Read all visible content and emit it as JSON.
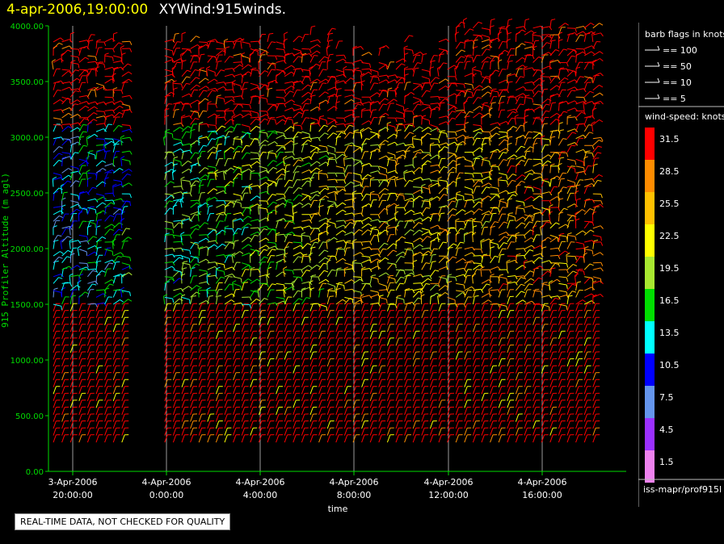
{
  "title": {
    "date": "4-apr-2006,19:00:00",
    "name": "XYWind:915winds."
  },
  "notice": "REAL-TIME DATA, NOT CHECKED FOR QUALITY",
  "source_label": "iss-mapr/prof915l",
  "barb_legend": {
    "title": "barb flags in knots",
    "entries": [
      "== 100",
      "== 50",
      "== 10",
      "== 5"
    ]
  },
  "speed_legend": {
    "title": "wind-speed: knots",
    "levels": [
      {
        "label": "31.5",
        "color": "#ff0000"
      },
      {
        "label": "28.5",
        "color": "#ff8c00"
      },
      {
        "label": "25.5",
        "color": "#ffc000"
      },
      {
        "label": "22.5",
        "color": "#ffff00"
      },
      {
        "label": "19.5",
        "color": "#a8e830"
      },
      {
        "label": "16.5",
        "color": "#00dd00"
      },
      {
        "label": "13.5",
        "color": "#00ffff"
      },
      {
        "label": "10.5",
        "color": "#0000ff"
      },
      {
        "label": "7.5",
        "color": "#6495ed"
      },
      {
        "label": "4.5",
        "color": "#9b30ff"
      },
      {
        "label": "1.5",
        "color": "#ee82ee"
      }
    ]
  },
  "chart_data": {
    "type": "scatter",
    "title": "4-apr-2006,19:00:00 XYWind:915winds.",
    "xlabel": "time",
    "ylabel": "915 Profiler Altitude (m agl)",
    "ylim": [
      0,
      4000
    ],
    "y_ticks": [
      "0.00",
      "500.00",
      "1000.00",
      "1500.00",
      "2000.00",
      "2500.00",
      "3000.00",
      "3500.00",
      "4000.00"
    ],
    "x_ticks": [
      {
        "date": "3-Apr-2006",
        "time": "20:00:00"
      },
      {
        "date": "4-Apr-2006",
        "time": "0:00:00"
      },
      {
        "date": "4-Apr-2006",
        "time": "4:00:00"
      },
      {
        "date": "4-Apr-2006",
        "time": "8:00:00"
      },
      {
        "date": "4-Apr-2006",
        "time": "12:00:00"
      },
      {
        "date": "4-Apr-2006",
        "time": "16:00:00"
      }
    ],
    "grid": "vertical"
  }
}
